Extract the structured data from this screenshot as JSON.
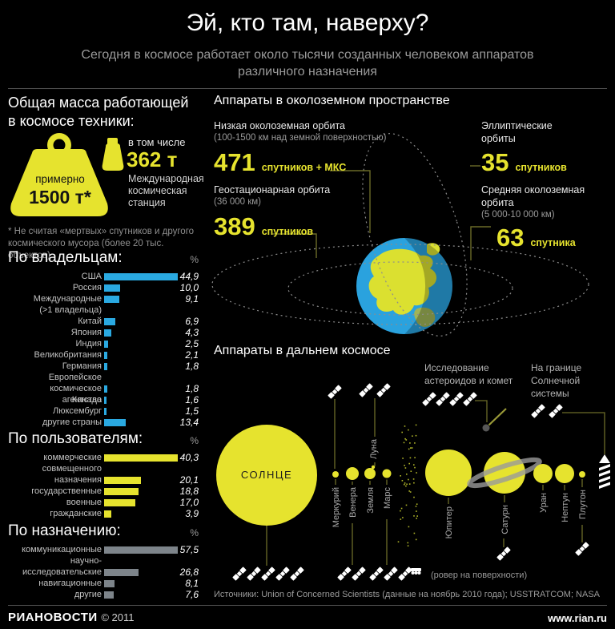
{
  "header": {
    "title": "Эй, кто там, наверху?",
    "subtitle": "Сегодня в космосе работает около тысячи созданных человеком аппаратов различного назначения"
  },
  "mass": {
    "heading": "Общая масса работающей в космосе техники:",
    "big_label": "примерно",
    "big_value": "1500 т*",
    "incl_label": "в том числе",
    "iss_value": "362 т",
    "iss_name": "Международная космическая станция",
    "footnote": "* Не считая «мертвых» спутников и другого космического мусора (более 20 тыс. объектов)"
  },
  "chart_data": [
    {
      "type": "bar",
      "title": "По владельцам:",
      "unit": "%",
      "color": "#2aa9e1",
      "categories": [
        {
          "lines": [
            "США"
          ],
          "bar_line": 0
        },
        {
          "lines": [
            "Россия"
          ],
          "bar_line": 0
        },
        {
          "lines": [
            "Международные",
            "(>1 владельца)"
          ],
          "bar_line": 0
        },
        {
          "lines": [
            "Китай"
          ],
          "bar_line": 0
        },
        {
          "lines": [
            "Япония"
          ],
          "bar_line": 0
        },
        {
          "lines": [
            "Индия"
          ],
          "bar_line": 0
        },
        {
          "lines": [
            "Великобритания"
          ],
          "bar_line": 0
        },
        {
          "lines": [
            "Германия"
          ],
          "bar_line": 0
        },
        {
          "lines": [
            "Европейское",
            "космическое агентство"
          ],
          "bar_line": 1
        },
        {
          "lines": [
            "Канада"
          ],
          "bar_line": 0
        },
        {
          "lines": [
            "Люксембург"
          ],
          "bar_line": 0
        },
        {
          "lines": [
            "другие страны"
          ],
          "bar_line": 0
        }
      ],
      "values": [
        44.9,
        10.0,
        9.1,
        6.9,
        4.3,
        2.5,
        2.1,
        1.8,
        1.8,
        1.6,
        1.5,
        13.4
      ]
    },
    {
      "type": "bar",
      "title": "По пользователям:",
      "unit": "%",
      "color": "#e6e32e",
      "categories": [
        {
          "lines": [
            "коммерческие"
          ],
          "bar_line": 0
        },
        {
          "lines": [
            "совмещенного",
            "назначения"
          ],
          "bar_line": 1
        },
        {
          "lines": [
            "государственные"
          ],
          "bar_line": 0
        },
        {
          "lines": [
            "военные"
          ],
          "bar_line": 0
        },
        {
          "lines": [
            "гражданские"
          ],
          "bar_line": 0
        }
      ],
      "values": [
        40.3,
        20.1,
        18.8,
        17.0,
        3.9
      ]
    },
    {
      "type": "bar",
      "title": "По назначению:",
      "unit": "%",
      "color": "#7d848a",
      "categories": [
        {
          "lines": [
            "коммуникационные"
          ],
          "bar_line": 0
        },
        {
          "lines": [
            "научно-",
            "исследовательские"
          ],
          "bar_line": 1
        },
        {
          "lines": [
            "навигационные"
          ],
          "bar_line": 0
        },
        {
          "lines": [
            "другие"
          ],
          "bar_line": 0
        }
      ],
      "values": [
        57.5,
        26.8,
        8.1,
        7.6
      ]
    }
  ],
  "near_earth": {
    "heading": "Аппараты в околоземном пространстве",
    "blocks": [
      {
        "title": "Низкая околоземная орбита",
        "subtitle": "(100-1500 км над земной поверхностью)",
        "value": "471",
        "unit": "спутников + МКС"
      },
      {
        "title": "Эллиптические орбиты",
        "subtitle": "",
        "value": "35",
        "unit": "спутников"
      },
      {
        "title": "Геостационарная орбита",
        "subtitle": "(36 000 км)",
        "value": "389",
        "unit": "спутников"
      },
      {
        "title": "Средняя околоземная орбита",
        "subtitle": "(5 000-10 000 км)",
        "value": "63",
        "unit": "спутника"
      }
    ]
  },
  "deep_space": {
    "heading": "Аппараты в дальнем космосе",
    "asteroid_label_lines": [
      "Исследование",
      "астероидов и комет"
    ],
    "boundary_label_lines": [
      "На границе",
      "Солнечной",
      "системы"
    ],
    "rover_note": "(ровер на поверхности)",
    "sun": "СОЛНЦЕ",
    "planets": [
      "Меркурий",
      "Венера",
      "Земля",
      "Луна",
      "Марс",
      "Юпитер",
      "Сатурн",
      "Уран",
      "Нептун",
      "Плутон"
    ]
  },
  "sources": "Источники: Union of Concerned Scientists (данные на ноябрь 2010 года); USSTRATCOM; NASA",
  "footer": {
    "brand": "РИАНОВОСТИ",
    "copyright": "© 2011",
    "site": "www.rian.ru"
  },
  "colors": {
    "yellow": "#e6e32e",
    "blue": "#2aa9e1",
    "gray_bar": "#7d848a",
    "olive": "#6b6b28"
  }
}
